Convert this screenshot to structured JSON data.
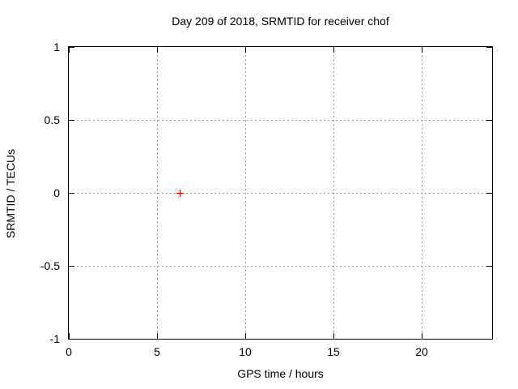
{
  "chart_data": {
    "type": "scatter",
    "title": "Day 209 of 2018, SRMTID for receiver chof",
    "xlabel": "GPS time / hours",
    "ylabel": "SRMTID / TECUs",
    "xlim": [
      0,
      24
    ],
    "ylim": [
      -1,
      1
    ],
    "xticks": [
      0,
      5,
      10,
      15,
      20
    ],
    "xtick_labels": [
      "0",
      "5",
      "10",
      "15",
      "20"
    ],
    "yticks": [
      -1,
      -0.5,
      0,
      0.5,
      1
    ],
    "ytick_labels": [
      "-1",
      "-0.5",
      "0",
      "0.5",
      "1"
    ],
    "grid": true,
    "grid_style": "dotted",
    "legend": "none",
    "series": [
      {
        "name": "SRMTID",
        "marker": "plus",
        "color": "#ff0000",
        "points": [
          {
            "x": 6.3,
            "y": 0.0
          }
        ]
      }
    ],
    "colors": {
      "background": "#ffffff",
      "border": "#000000",
      "grid": "#9e9e9e",
      "text": "#000000",
      "point": "#ff0000"
    }
  }
}
